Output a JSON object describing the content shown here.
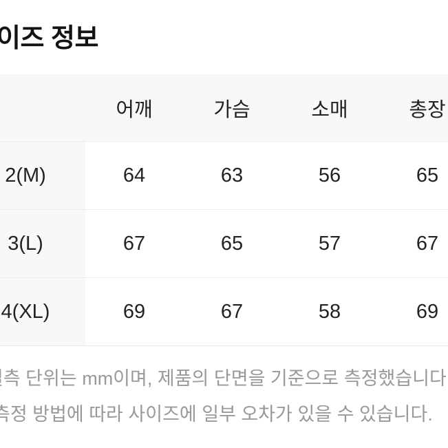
{
  "page": {
    "title": "이즈 정보"
  },
  "size_table": {
    "columns": [
      "어깨",
      "가슴",
      "소매",
      "총장"
    ],
    "rows": [
      {
        "label": "2(M)",
        "values": [
          "64",
          "63",
          "56",
          "65"
        ]
      },
      {
        "label": "3(L)",
        "values": [
          "67",
          "65",
          "57",
          "67"
        ]
      },
      {
        "label": "4(XL)",
        "values": [
          "69",
          "67",
          "58",
          "69"
        ]
      }
    ]
  },
  "notes": {
    "line1": "실측 단위는 mm이며, 제품의 단면을 기준으로 측정했습니다.",
    "line2": "측정 방법에 따라 사이즈에 일부 오차가 있을 수 있습니다."
  },
  "colors": {
    "header_bg": "#f8f8f9",
    "divider": "#ededee",
    "table_bottom_border": "#e7e7e9",
    "title_text": "#131316",
    "cell_text": "#222226",
    "note_text": "#98989d",
    "page_bg": "#ffffff"
  }
}
